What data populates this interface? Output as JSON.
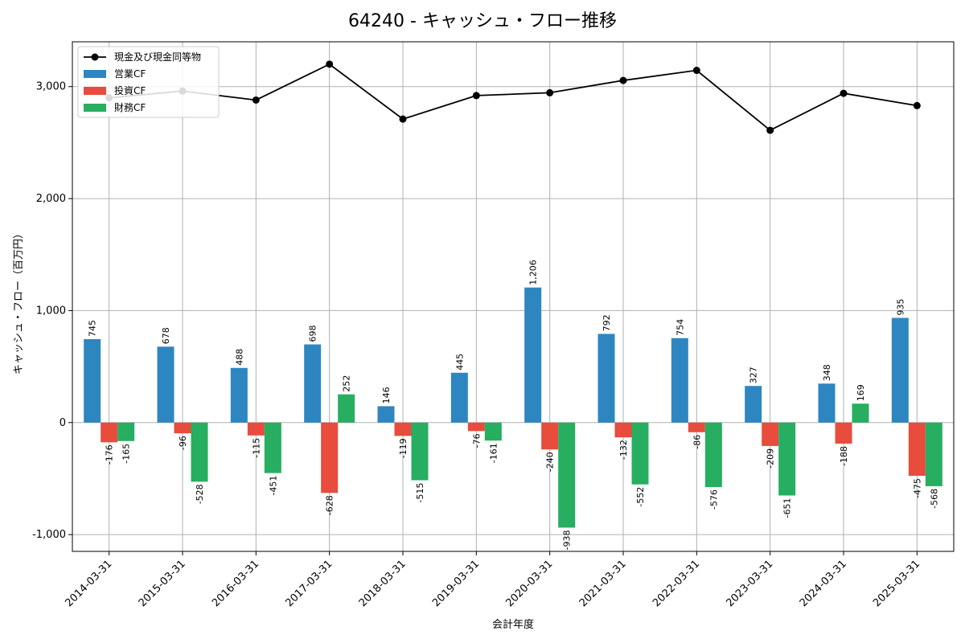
{
  "chart_data": {
    "type": "bar",
    "title": "64240 - キャッシュ・フロー推移",
    "xlabel": "会計年度",
    "ylabel": "キャッシュ・フロー（百万円）",
    "categories": [
      "2014-03-31",
      "2015-03-31",
      "2016-03-31",
      "2017-03-31",
      "2018-03-31",
      "2019-03-31",
      "2020-03-31",
      "2021-03-31",
      "2022-03-31",
      "2023-03-31",
      "2024-03-31",
      "2025-03-31"
    ],
    "ylim": [
      -1150,
      3400
    ],
    "yticks": [
      -1000,
      0,
      1000,
      2000,
      3000
    ],
    "ytick_labels": [
      "-1,000",
      "0",
      "1,000",
      "2,000",
      "3,000"
    ],
    "grid": true,
    "legend_position": "top-left",
    "series": [
      {
        "name": "営業CF",
        "kind": "bar",
        "color": "#2e86c1",
        "values": [
          745,
          678,
          488,
          698,
          146,
          445,
          1206,
          792,
          754,
          327,
          348,
          935
        ],
        "labels": [
          "745",
          "678",
          "488",
          "698",
          "146",
          "445",
          "1,206",
          "792",
          "754",
          "327",
          "348",
          "935"
        ]
      },
      {
        "name": "投資CF",
        "kind": "bar",
        "color": "#e74c3c",
        "values": [
          -176,
          -96,
          -115,
          -628,
          -119,
          -76,
          -240,
          -132,
          -86,
          -209,
          -188,
          -475
        ],
        "labels": [
          "-176",
          "-96",
          "-115",
          "-628",
          "-119",
          "-76",
          "-240",
          "-132",
          "-86",
          "-209",
          "-188",
          "-475"
        ]
      },
      {
        "name": "財務CF",
        "kind": "bar",
        "color": "#27ae60",
        "values": [
          -165,
          -528,
          -451,
          252,
          -515,
          -161,
          -938,
          -552,
          -576,
          -651,
          169,
          -568
        ],
        "labels": [
          "-165",
          "-528",
          "-451",
          "252",
          "-515",
          "-161",
          "-938",
          "-552",
          "-576",
          "-651",
          "169",
          "-568"
        ]
      },
      {
        "name": "現金及び現金同等物",
        "kind": "line",
        "color": "#000000",
        "values": [
          2900,
          2960,
          2880,
          3200,
          2710,
          2920,
          2945,
          3055,
          3145,
          2610,
          2940,
          2830
        ]
      }
    ]
  }
}
